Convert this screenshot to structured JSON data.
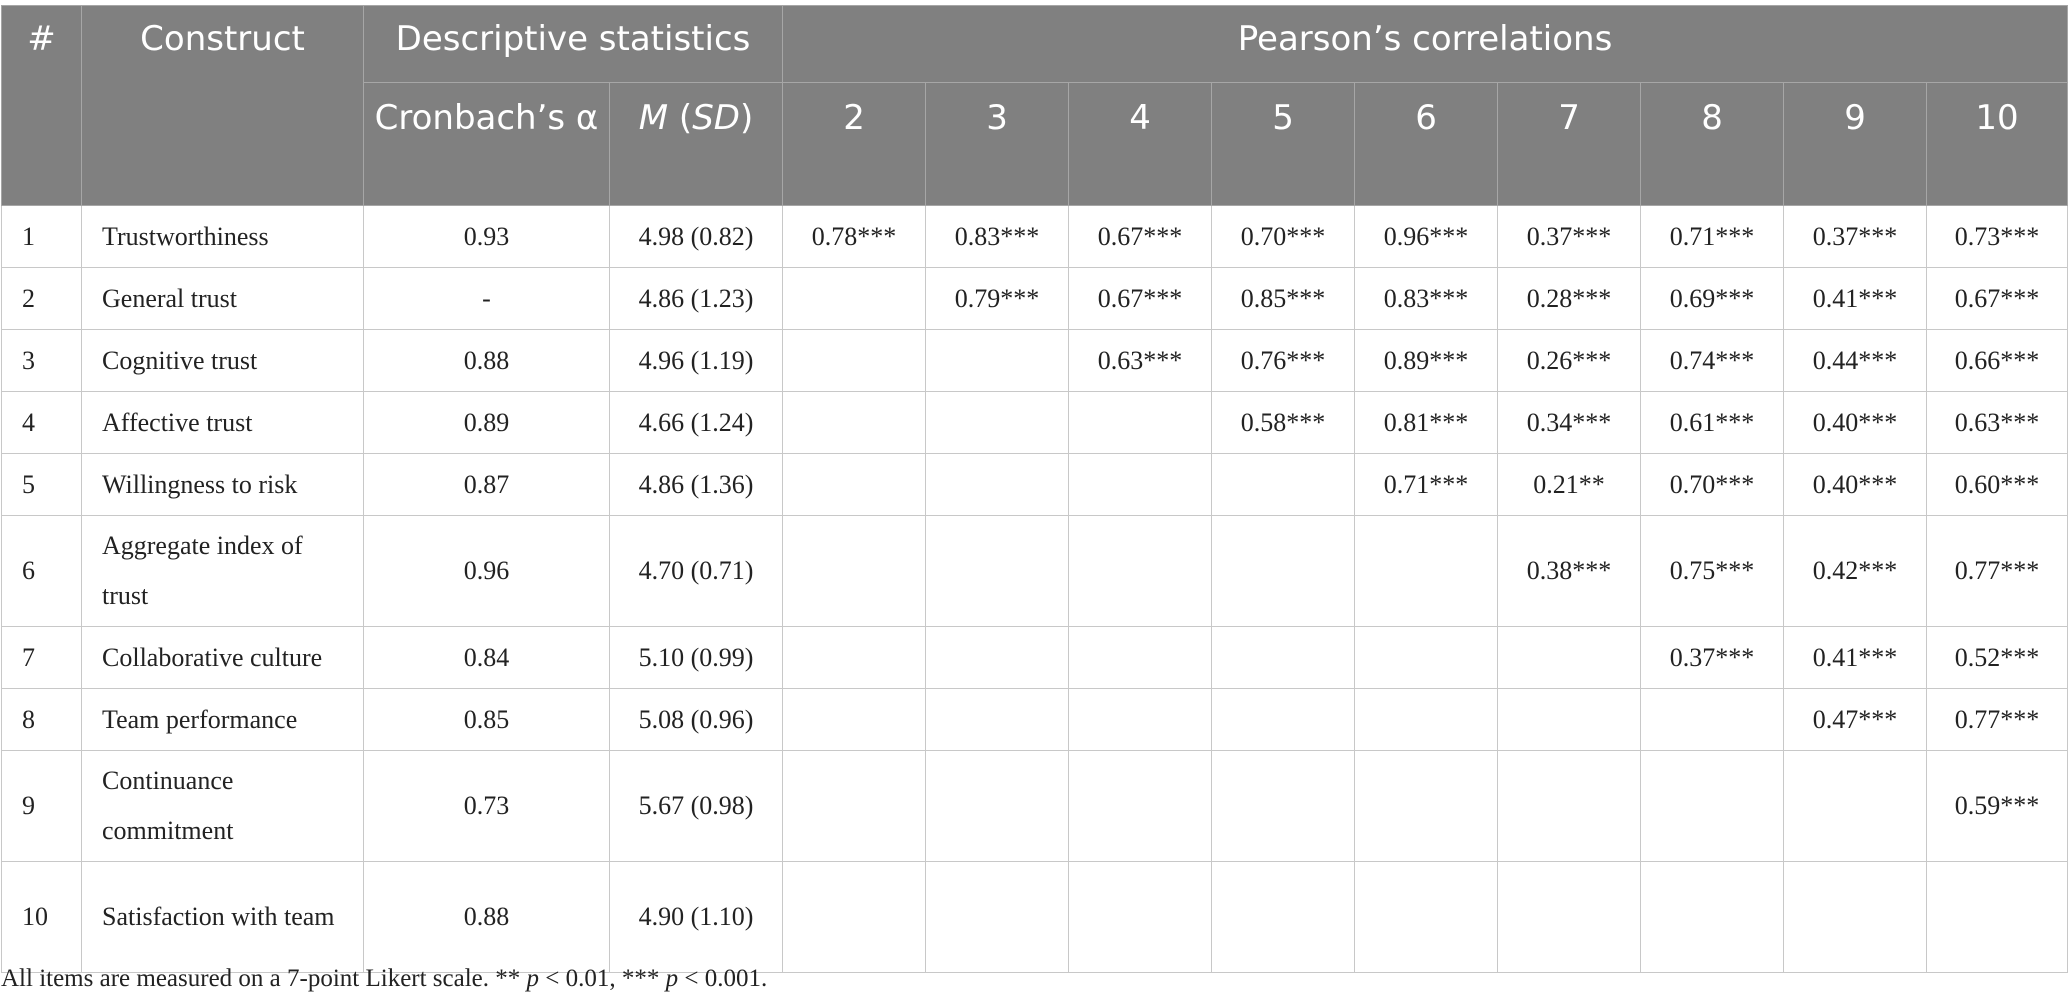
{
  "table": {
    "header": {
      "num": "#",
      "construct": "Construct",
      "descriptive": "Descriptive statistics",
      "pearson": "Pearson’s correlations",
      "cronbach": "Cronbach’s α",
      "m_letter": "M",
      "sd_letter": "SD",
      "corr_cols": [
        "2",
        "3",
        "4",
        "5",
        "6",
        "7",
        "8",
        "9",
        "10"
      ]
    },
    "rows": [
      {
        "num": "1",
        "name": "Trustworthiness",
        "alpha": "0.93",
        "msd": "4.98 (0.82)",
        "corr": [
          "0.78***",
          "0.83***",
          "0.67***",
          "0.70***",
          "0.96***",
          "0.37***",
          "0.71***",
          "0.37***",
          "0.73***"
        ]
      },
      {
        "num": "2",
        "name": "General trust",
        "alpha": "-",
        "msd": "4.86 (1.23)",
        "corr": [
          "",
          "0.79***",
          "0.67***",
          "0.85***",
          "0.83***",
          "0.28***",
          "0.69***",
          "0.41***",
          "0.67***"
        ]
      },
      {
        "num": "3",
        "name": "Cognitive trust",
        "alpha": "0.88",
        "msd": "4.96 (1.19)",
        "corr": [
          "",
          "",
          "0.63***",
          "0.76***",
          "0.89***",
          "0.26***",
          "0.74***",
          "0.44***",
          "0.66***"
        ]
      },
      {
        "num": "4",
        "name": "Affective trust",
        "alpha": "0.89",
        "msd": "4.66 (1.24)",
        "corr": [
          "",
          "",
          "",
          "0.58***",
          "0.81***",
          "0.34***",
          "0.61***",
          "0.40***",
          "0.63***"
        ]
      },
      {
        "num": "5",
        "name": "Willingness to risk",
        "alpha": "0.87",
        "msd": "4.86 (1.36)",
        "corr": [
          "",
          "",
          "",
          "",
          "0.71***",
          "0.21**",
          "0.70***",
          "0.40***",
          "0.60***"
        ]
      },
      {
        "num": "6",
        "name": "Aggregate index of trust",
        "alpha": "0.96",
        "msd": "4.70 (0.71)",
        "corr": [
          "",
          "",
          "",
          "",
          "",
          "0.38***",
          "0.75***",
          "0.42***",
          "0.77***"
        ]
      },
      {
        "num": "7",
        "name": "Collaborative culture",
        "alpha": "0.84",
        "msd": "5.10 (0.99)",
        "corr": [
          "",
          "",
          "",
          "",
          "",
          "",
          "0.37***",
          "0.41***",
          "0.52***"
        ]
      },
      {
        "num": "8",
        "name": "Team performance",
        "alpha": "0.85",
        "msd": "5.08 (0.96)",
        "corr": [
          "",
          "",
          "",
          "",
          "",
          "",
          "",
          "0.47***",
          "0.77***"
        ]
      },
      {
        "num": "9",
        "name": "Continuance commitment",
        "alpha": "0.73",
        "msd": "5.67 (0.98)",
        "corr": [
          "",
          "",
          "",
          "",
          "",
          "",
          "",
          "",
          "0.59***"
        ]
      },
      {
        "num": "10",
        "name": "Satisfaction with team",
        "alpha": "0.88",
        "msd": "4.90 (1.10)",
        "corr": [
          "",
          "",
          "",
          "",
          "",
          "",
          "",
          "",
          ""
        ]
      }
    ]
  },
  "footnote": {
    "part1": "All items are measured on a 7-point Likert scale. ** ",
    "p1": "p",
    "part2": " < 0.01, *** ",
    "p2": "p",
    "part3": " < 0.001."
  }
}
